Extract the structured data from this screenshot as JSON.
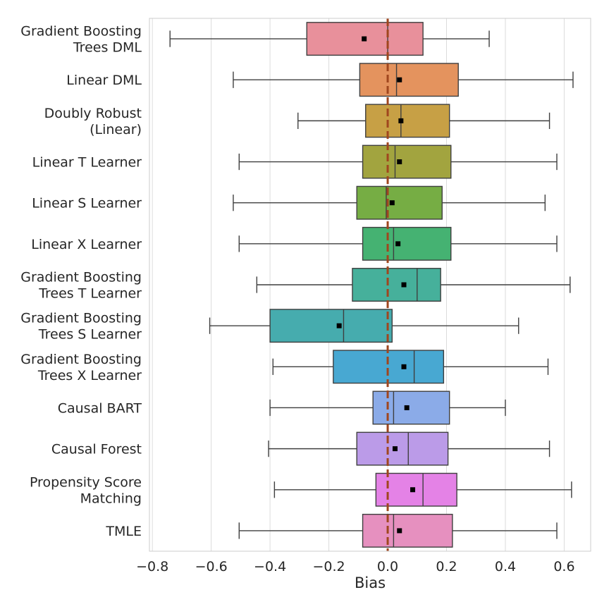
{
  "chart_data": {
    "type": "boxplot",
    "title": "",
    "xlabel": "Bias",
    "ylabel": "",
    "xlim": [
      -0.81,
      0.69
    ],
    "xticks": [
      -0.8,
      -0.6,
      -0.4,
      -0.2,
      0.0,
      0.2,
      0.4,
      0.6
    ],
    "xtick_labels": [
      "−0.8",
      "−0.6",
      "−0.4",
      "−0.2",
      "0.0",
      "0.2",
      "0.4",
      "0.6"
    ],
    "grid": "vertical",
    "reference_line": {
      "x": 0.0,
      "style": "dashed",
      "color": "#a0461e"
    },
    "box_edge_color": "#3f3f3f",
    "mean_marker_color": "#000000",
    "categories": [
      {
        "label": [
          "Gradient Boosting",
          "Trees DML"
        ],
        "color": "#e8909b",
        "whisker_low": -0.74,
        "q1": -0.275,
        "median": 0.0,
        "mean": -0.08,
        "q3": 0.12,
        "whisker_high": 0.345
      },
      {
        "label": [
          "Linear DML"
        ],
        "color": "#e4935e",
        "whisker_low": -0.525,
        "q1": -0.095,
        "median": 0.03,
        "mean": 0.04,
        "q3": 0.24,
        "whisker_high": 0.63
      },
      {
        "label": [
          "Doubly Robust",
          "(Linear)"
        ],
        "color": "#c7a045",
        "whisker_low": -0.305,
        "q1": -0.075,
        "median": 0.045,
        "mean": 0.045,
        "q3": 0.21,
        "whisker_high": 0.55
      },
      {
        "label": [
          "Linear T Learner"
        ],
        "color": "#a2a43f",
        "whisker_low": -0.505,
        "q1": -0.085,
        "median": 0.025,
        "mean": 0.04,
        "q3": 0.215,
        "whisker_high": 0.575
      },
      {
        "label": [
          "Linear S Learner"
        ],
        "color": "#76ad44",
        "whisker_low": -0.525,
        "q1": -0.105,
        "median": -0.005,
        "mean": 0.015,
        "q3": 0.185,
        "whisker_high": 0.535
      },
      {
        "label": [
          "Linear X Learner"
        ],
        "color": "#45b272",
        "whisker_low": -0.505,
        "q1": -0.085,
        "median": 0.02,
        "mean": 0.035,
        "q3": 0.215,
        "whisker_high": 0.575
      },
      {
        "label": [
          "Gradient Boosting",
          "Trees T Learner"
        ],
        "color": "#46b09b",
        "whisker_low": -0.445,
        "q1": -0.12,
        "median": 0.1,
        "mean": 0.055,
        "q3": 0.18,
        "whisker_high": 0.62
      },
      {
        "label": [
          "Gradient Boosting",
          "Trees S Learner"
        ],
        "color": "#46acae",
        "whisker_low": -0.605,
        "q1": -0.4,
        "median": -0.15,
        "mean": -0.165,
        "q3": 0.015,
        "whisker_high": 0.445
      },
      {
        "label": [
          "Gradient Boosting",
          "Trees X Learner"
        ],
        "color": "#48a8d2",
        "whisker_low": -0.39,
        "q1": -0.185,
        "median": 0.09,
        "mean": 0.055,
        "q3": 0.19,
        "whisker_high": 0.545
      },
      {
        "label": [
          "Causal BART"
        ],
        "color": "#8babe8",
        "whisker_low": -0.4,
        "q1": -0.05,
        "median": 0.02,
        "mean": 0.065,
        "q3": 0.21,
        "whisker_high": 0.4
      },
      {
        "label": [
          "Causal Forest"
        ],
        "color": "#bb9be8",
        "whisker_low": -0.405,
        "q1": -0.105,
        "median": 0.07,
        "mean": 0.025,
        "q3": 0.205,
        "whisker_high": 0.55
      },
      {
        "label": [
          "Propensity Score",
          "Matching"
        ],
        "color": "#e482e6",
        "whisker_low": -0.385,
        "q1": -0.04,
        "median": 0.12,
        "mean": 0.085,
        "q3": 0.235,
        "whisker_high": 0.625
      },
      {
        "label": [
          "TMLE"
        ],
        "color": "#e690bf",
        "whisker_low": -0.505,
        "q1": -0.085,
        "median": 0.02,
        "mean": 0.04,
        "q3": 0.22,
        "whisker_high": 0.575
      }
    ]
  }
}
